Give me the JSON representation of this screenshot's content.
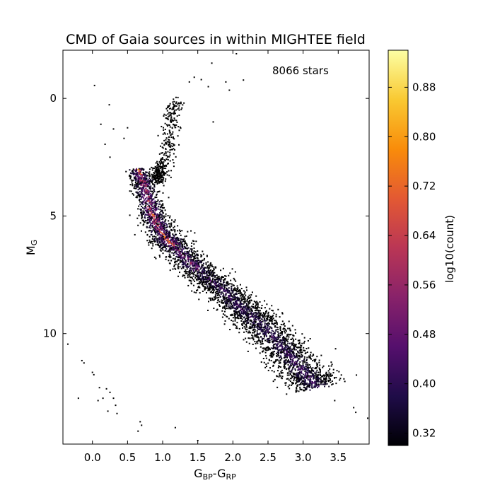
{
  "chart_data": {
    "type": "scatter",
    "title": "CMD of Gaia sources in within MIGHTEE field",
    "xlabel": {
      "main": "G",
      "sub1": "BP",
      "mid": "-G",
      "sub2": "RP"
    },
    "ylabel": {
      "main": "M",
      "sub": "G"
    },
    "xlim": [
      -0.42,
      3.94
    ],
    "ylim": [
      14.7,
      -2.05
    ],
    "y_inverted": true,
    "grid": false,
    "x_ticks": [
      {
        "value": 0.0,
        "label": "0.0"
      },
      {
        "value": 0.5,
        "label": "0.5"
      },
      {
        "value": 1.0,
        "label": "1.0"
      },
      {
        "value": 1.5,
        "label": "1.5"
      },
      {
        "value": 2.0,
        "label": "2.0"
      },
      {
        "value": 2.5,
        "label": "2.5"
      },
      {
        "value": 3.0,
        "label": "3.0"
      },
      {
        "value": 3.5,
        "label": "3.5"
      }
    ],
    "y_ticks": [
      {
        "value": 0,
        "label": "0"
      },
      {
        "value": 5,
        "label": "5"
      },
      {
        "value": 10,
        "label": "10"
      }
    ],
    "annotation": "8066 stars",
    "colorbar": {
      "label": "log10(count)",
      "min": 0.3,
      "max": 0.94,
      "ticks": [
        {
          "value": 0.32,
          "label": "0.32"
        },
        {
          "value": 0.4,
          "label": "0.40"
        },
        {
          "value": 0.48,
          "label": "0.48"
        },
        {
          "value": 0.56,
          "label": "0.56"
        },
        {
          "value": 0.64,
          "label": "0.64"
        },
        {
          "value": 0.72,
          "label": "0.72"
        },
        {
          "value": 0.8,
          "label": "0.80"
        },
        {
          "value": 0.88,
          "label": "0.88"
        }
      ],
      "colormap": [
        "#000004",
        "#1f0c48",
        "#550f6d",
        "#88226a",
        "#ba3655",
        "#e35933",
        "#f98c0a",
        "#f9c932",
        "#fcffa4"
      ]
    },
    "sequence_spine": [
      {
        "x": 0.65,
        "y": 3.0
      },
      {
        "x": 0.75,
        "y": 3.8
      },
      {
        "x": 0.85,
        "y": 4.9
      },
      {
        "x": 1.0,
        "y": 5.8
      },
      {
        "x": 1.2,
        "y": 6.4
      },
      {
        "x": 1.5,
        "y": 7.3
      },
      {
        "x": 1.8,
        "y": 8.0
      },
      {
        "x": 2.1,
        "y": 8.9
      },
      {
        "x": 2.4,
        "y": 9.6
      },
      {
        "x": 2.7,
        "y": 10.6
      },
      {
        "x": 3.0,
        "y": 11.6
      },
      {
        "x": 3.2,
        "y": 12.3
      }
    ],
    "giant_branch_spine": [
      {
        "x": 0.95,
        "y": 3.3
      },
      {
        "x": 1.05,
        "y": 2.4
      },
      {
        "x": 1.1,
        "y": 1.5
      },
      {
        "x": 1.12,
        "y": 0.6
      },
      {
        "x": 1.2,
        "y": 0.2
      }
    ],
    "outliers": [
      {
        "x": 0.03,
        "y": -0.55
      },
      {
        "x": 0.24,
        "y": 0.27
      },
      {
        "x": 0.12,
        "y": 1.1
      },
      {
        "x": 0.3,
        "y": 1.3
      },
      {
        "x": 0.18,
        "y": 1.95
      },
      {
        "x": 0.25,
        "y": 2.5
      },
      {
        "x": 0.45,
        "y": 1.7
      },
      {
        "x": 0.5,
        "y": 1.25
      },
      {
        "x": 1.38,
        "y": -0.7
      },
      {
        "x": 1.55,
        "y": -0.8
      },
      {
        "x": 1.65,
        "y": -0.5
      },
      {
        "x": 1.72,
        "y": 1.0
      },
      {
        "x": 1.9,
        "y": -0.7
      },
      {
        "x": 2.15,
        "y": -0.78
      },
      {
        "x": 1.7,
        "y": -1.5
      },
      {
        "x": 2.05,
        "y": -1.9
      },
      {
        "x": 1.45,
        "y": -0.9
      },
      {
        "x": 1.95,
        "y": -0.35
      },
      {
        "x": -0.35,
        "y": 10.45
      },
      {
        "x": -0.15,
        "y": 11.15
      },
      {
        "x": -0.12,
        "y": 11.25
      },
      {
        "x": 0.0,
        "y": 11.65
      },
      {
        "x": 0.02,
        "y": 11.75
      },
      {
        "x": 0.1,
        "y": 12.3
      },
      {
        "x": 0.2,
        "y": 12.35
      },
      {
        "x": 0.25,
        "y": 12.5
      },
      {
        "x": 0.3,
        "y": 12.75
      },
      {
        "x": 0.33,
        "y": 13.05
      },
      {
        "x": -0.2,
        "y": 12.75
      },
      {
        "x": 0.08,
        "y": 12.85
      },
      {
        "x": 0.15,
        "y": 12.75
      },
      {
        "x": 0.22,
        "y": 13.3
      },
      {
        "x": 0.35,
        "y": 13.4
      },
      {
        "x": 0.68,
        "y": 13.75
      },
      {
        "x": 0.7,
        "y": 13.9
      },
      {
        "x": 0.65,
        "y": 14.15
      },
      {
        "x": 1.18,
        "y": 14.0
      },
      {
        "x": 1.5,
        "y": 14.55
      },
      {
        "x": 3.72,
        "y": 13.15
      },
      {
        "x": 3.75,
        "y": 13.35
      },
      {
        "x": 3.92,
        "y": 13.6
      },
      {
        "x": 3.45,
        "y": 12.85
      }
    ]
  }
}
